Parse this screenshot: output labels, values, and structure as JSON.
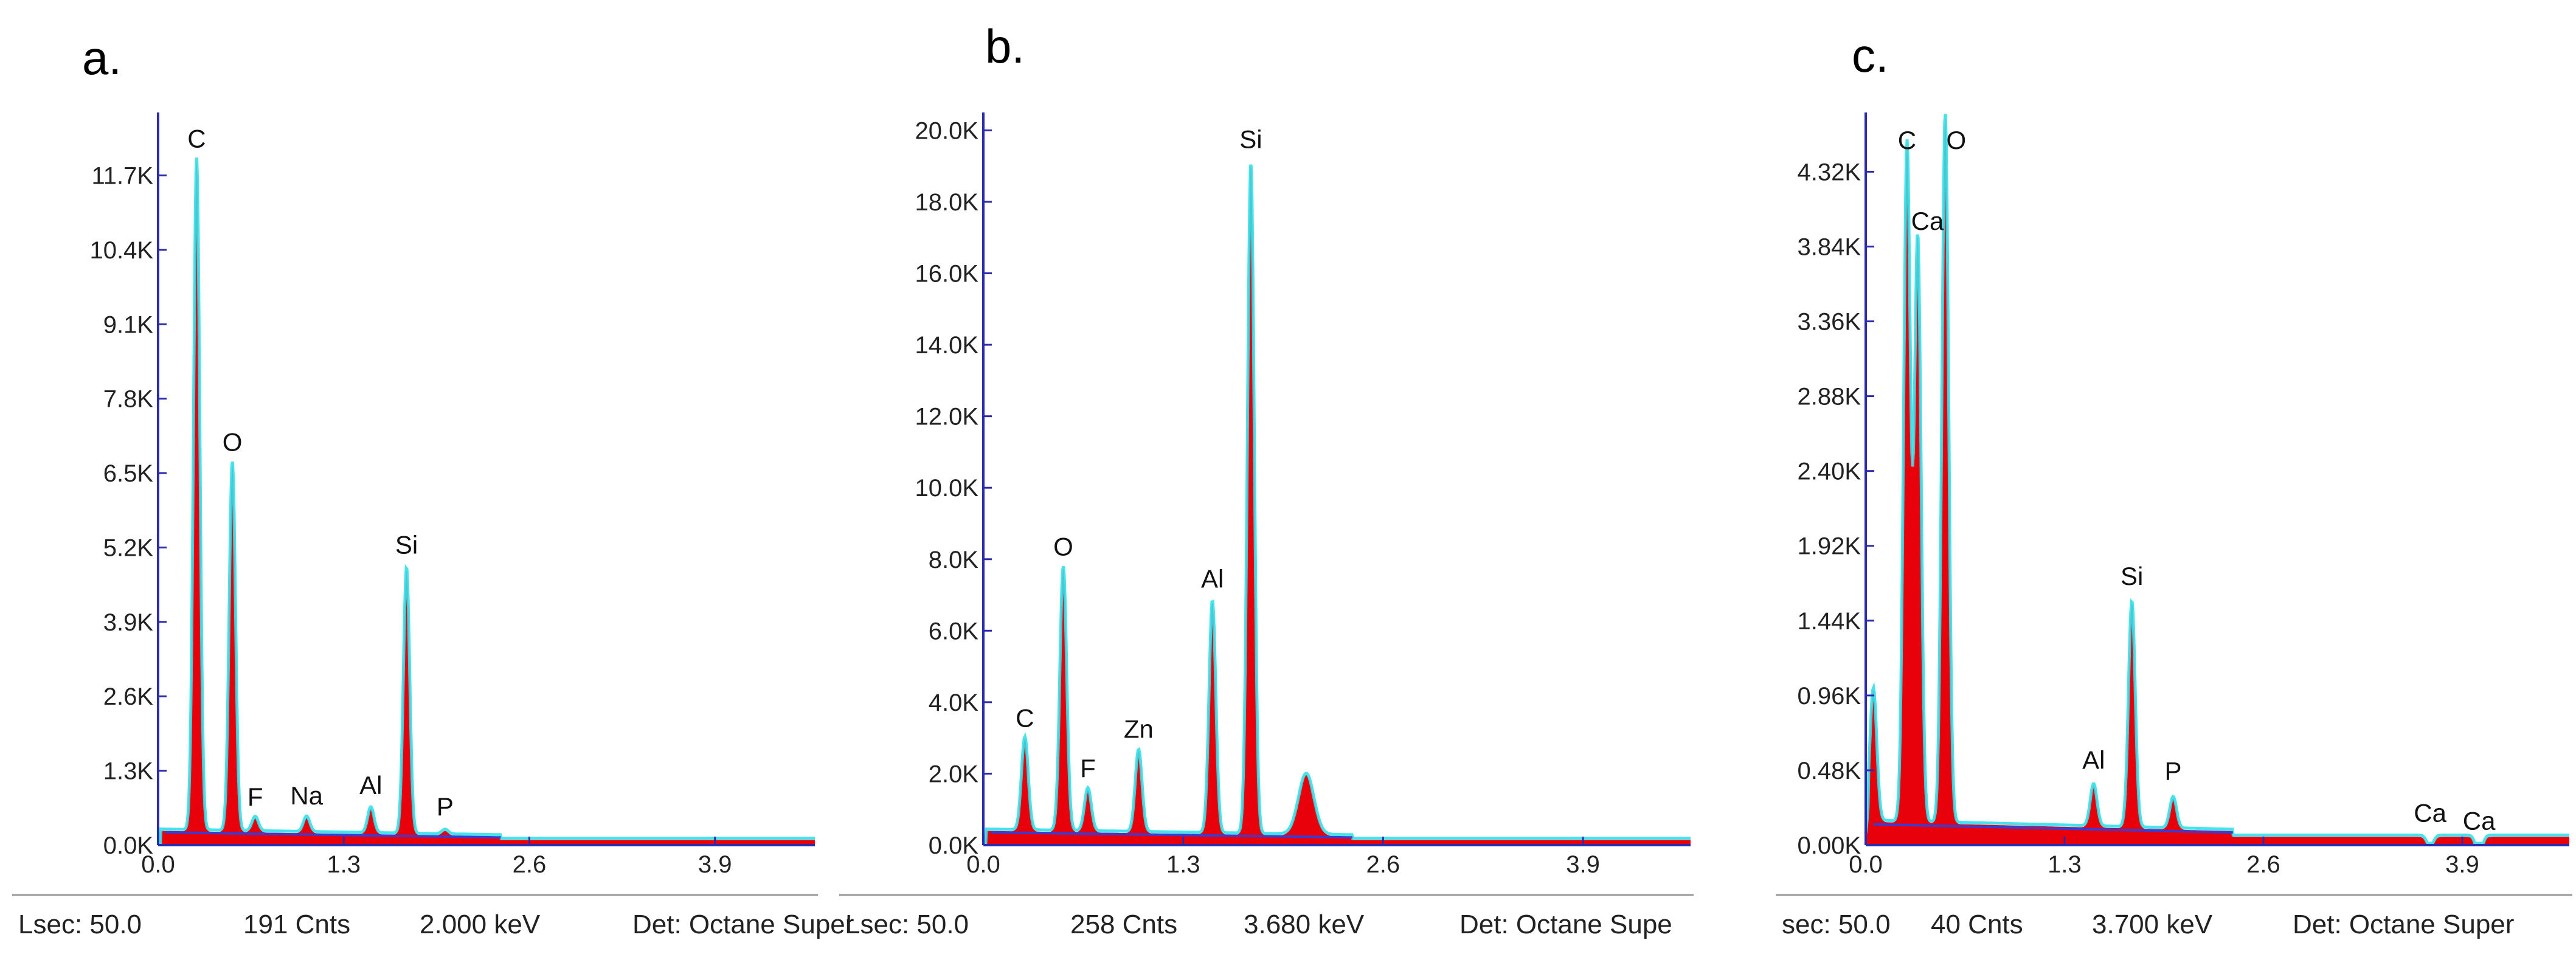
{
  "colors": {
    "spectrum_fill": "#e8000a",
    "spectrum_outline": "#33e0ea",
    "background_line": "#3b3bd0",
    "axis": "#2b2bb0",
    "divider": "#9a9a9a"
  },
  "chart_data": [
    {
      "type": "area",
      "panel_label": "a.",
      "xlabel": "",
      "ylabel": "",
      "xlim": [
        0,
        4.6
      ],
      "ylim": [
        0,
        12800
      ],
      "x_ticks": [
        "0.0",
        "1.3",
        "2.6",
        "3.9"
      ],
      "x_tick_values": [
        0.0,
        1.3,
        2.6,
        3.9
      ],
      "y_ticks": [
        "0.0K",
        "1.3K",
        "2.6K",
        "3.9K",
        "5.2K",
        "6.5K",
        "7.8K",
        "9.1K",
        "10.4K",
        "11.7K"
      ],
      "y_tick_values": [
        0,
        1300,
        2600,
        3900,
        5200,
        6500,
        7800,
        9100,
        10400,
        11700
      ],
      "peaks": [
        {
          "label": "C",
          "kev": 0.27,
          "counts": 12000
        },
        {
          "label": "O",
          "kev": 0.52,
          "counts": 6700
        },
        {
          "label": "F",
          "kev": 0.68,
          "counts": 500
        },
        {
          "label": "Na",
          "kev": 1.04,
          "counts": 520
        },
        {
          "label": "Al",
          "kev": 1.49,
          "counts": 700
        },
        {
          "label": "Si",
          "kev": 1.74,
          "counts": 4900
        },
        {
          "label": "P",
          "kev": 2.01,
          "counts": 330
        }
      ],
      "background_counts": 250,
      "status": {
        "live_time": "Lsec: 50.0",
        "counts": "191 Cnts",
        "energy": "2.000 keV",
        "detector": "Det: Octane Super"
      }
    },
    {
      "type": "area",
      "panel_label": "b.",
      "xlabel": "",
      "ylabel": "",
      "xlim": [
        0,
        4.6
      ],
      "ylim": [
        0,
        20500
      ],
      "x_ticks": [
        "0.0",
        "1.3",
        "2.6",
        "3.9"
      ],
      "x_tick_values": [
        0.0,
        1.3,
        2.6,
        3.9
      ],
      "y_ticks": [
        "0.0K",
        "2.0K",
        "4.0K",
        "6.0K",
        "8.0K",
        "10.0K",
        "12.0K",
        "14.0K",
        "16.0K",
        "18.0K",
        "20.0K"
      ],
      "y_tick_values": [
        0,
        2000,
        4000,
        6000,
        8000,
        10000,
        12000,
        14000,
        16000,
        18000,
        20000
      ],
      "peaks": [
        {
          "label": "C",
          "kev": 0.27,
          "counts": 3000
        },
        {
          "label": "O",
          "kev": 0.52,
          "counts": 7800
        },
        {
          "label": "F",
          "kev": 0.68,
          "counts": 1600
        },
        {
          "label": "Zn",
          "kev": 1.01,
          "counts": 2700
        },
        {
          "label": "Al",
          "kev": 1.49,
          "counts": 6900
        },
        {
          "label": "Si",
          "kev": 1.74,
          "counts": 19200
        },
        {
          "label": "",
          "kev": 2.1,
          "counts": 2100
        }
      ],
      "background_counts": 400,
      "status": {
        "live_time": "Lsec: 50.0",
        "counts": "258 Cnts",
        "energy": "3.680 keV",
        "detector": "Det: Octane Supe"
      }
    },
    {
      "type": "area",
      "panel_label": "c.",
      "xlabel": "",
      "ylabel": "",
      "xlim": [
        0,
        4.6
      ],
      "ylim": [
        0,
        4700
      ],
      "x_ticks": [
        "0.0",
        "1.3",
        "2.6",
        "3.9"
      ],
      "x_tick_values": [
        0.0,
        1.3,
        2.6,
        3.9
      ],
      "y_ticks": [
        "0.00K",
        "0.48K",
        "0.96K",
        "1.44K",
        "1.92K",
        "2.40K",
        "2.88K",
        "3.36K",
        "3.84K",
        "4.32K"
      ],
      "y_tick_values": [
        0,
        480,
        960,
        1440,
        1920,
        2400,
        2880,
        3360,
        3840,
        4320
      ],
      "peaks": [
        {
          "label": "",
          "kev": 0.05,
          "counts": 1000
        },
        {
          "label": "C",
          "kev": 0.27,
          "counts": 4500
        },
        {
          "label": "Ca",
          "kev": 0.34,
          "counts": 3900
        },
        {
          "label": "O",
          "kev": 0.52,
          "counts": 4700
        },
        {
          "label": "Al",
          "kev": 1.49,
          "counts": 420
        },
        {
          "label": "Si",
          "kev": 1.74,
          "counts": 1600
        },
        {
          "label": "P",
          "kev": 2.01,
          "counts": 350
        },
        {
          "label": "Ca",
          "kev": 3.69,
          "counts": 80
        },
        {
          "label": "Ca",
          "kev": 4.01,
          "counts": 30
        }
      ],
      "background_counts": 150,
      "status": {
        "live_time": "sec: 50.0",
        "counts": "40 Cnts",
        "energy": "3.700 keV",
        "detector": "Det: Octane Super"
      }
    }
  ]
}
